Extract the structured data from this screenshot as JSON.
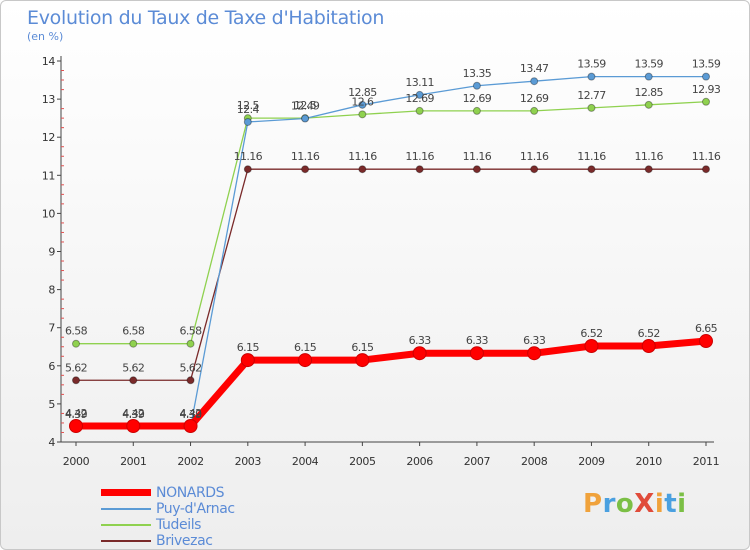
{
  "chart_data": {
    "type": "line",
    "title": "Evolution du Taux de Taxe d'Habitation",
    "subtitle": "(en %)",
    "x": [
      "2000",
      "2001",
      "2002",
      "2003",
      "2004",
      "2005",
      "2006",
      "2007",
      "2008",
      "2009",
      "2010",
      "2011"
    ],
    "ylim": [
      4,
      14
    ],
    "yticks": [
      "4",
      "5",
      "6",
      "7",
      "8",
      "9",
      "10",
      "11",
      "12",
      "13",
      "14"
    ],
    "grid": false,
    "legend_position": "bottom-left",
    "series": [
      {
        "name": "NONARDS",
        "color": "#ff0000",
        "values": [
          4.42,
          4.42,
          4.42,
          6.15,
          6.15,
          6.15,
          6.33,
          6.33,
          6.33,
          6.52,
          6.52,
          6.65
        ],
        "labels": [
          "4.42",
          "4.42",
          "4.42",
          "6.15",
          "6.15",
          "6.15",
          "6.33",
          "6.33",
          "6.33",
          "6.52",
          "6.52",
          "6.65"
        ]
      },
      {
        "name": "Puy-d'Arnac",
        "color": "#5b9bd5",
        "values": [
          4.39,
          4.39,
          4.39,
          12.4,
          12.49,
          12.85,
          13.11,
          13.35,
          13.47,
          13.59,
          13.59,
          13.59
        ],
        "labels": [
          "4.39",
          "4.39",
          "4.39",
          "12.4",
          "12.49",
          "12.85",
          "13.11",
          "13.35",
          "13.47",
          "13.59",
          "13.59",
          "13.59"
        ]
      },
      {
        "name": "Tudeils",
        "color": "#8fd14f",
        "values": [
          6.58,
          6.58,
          6.58,
          12.5,
          12.5,
          12.6,
          12.69,
          12.69,
          12.69,
          12.77,
          12.85,
          12.93
        ],
        "labels": [
          "6.58",
          "6.58",
          "6.58",
          "12.5",
          "12.5",
          "12.6",
          "12.69",
          "12.69",
          "12.69",
          "12.77",
          "12.85",
          "12.93"
        ]
      },
      {
        "name": "Brivezac",
        "color": "#7a2a2a",
        "values": [
          5.62,
          5.62,
          5.62,
          11.16,
          11.16,
          11.16,
          11.16,
          11.16,
          11.16,
          11.16,
          11.16,
          11.16
        ],
        "labels": [
          "5.62",
          "5.62",
          "5.62",
          "11.16",
          "11.16",
          "11.16",
          "11.16",
          "11.16",
          "11.16",
          "11.16",
          "11.16",
          "11.16"
        ]
      }
    ]
  },
  "logo": {
    "text": "ProXiti",
    "letters": [
      "P",
      "r",
      "o",
      "X",
      "i",
      "t",
      "i"
    ]
  }
}
